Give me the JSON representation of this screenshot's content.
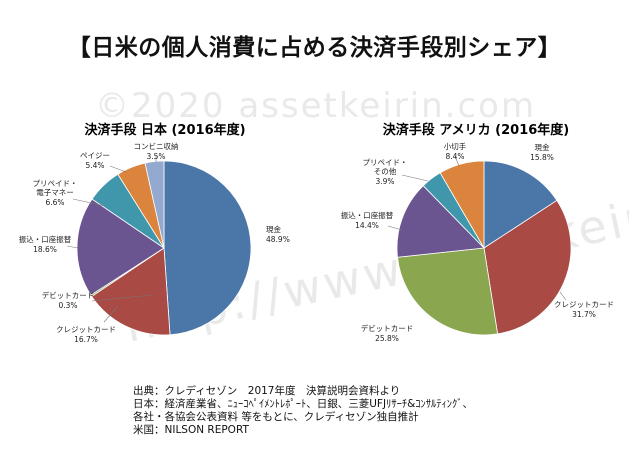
{
  "title": "【日米の個人消費に占める決済手段別シェア】",
  "watermark": {
    "top": "©2020 assetkeirin.com",
    "bottom": "http://www.assetkeirin.com"
  },
  "chart_data": [
    {
      "type": "pie",
      "title": "決済手段 日本 (2016年度)",
      "unit": "%",
      "slices": [
        {
          "label": "現金",
          "value": 48.9,
          "color": "#4A77A8"
        },
        {
          "label": "クレジットカード",
          "value": 16.7,
          "color": "#A94A45"
        },
        {
          "label": "デビットカード",
          "value": 0.3,
          "color": "#8AA64E"
        },
        {
          "label": "振込・口座振替",
          "value": 18.6,
          "color": "#6B5591"
        },
        {
          "label": "プリペイド・電子マネー",
          "value": 6.6,
          "color": "#4096AB"
        },
        {
          "label": "ペイジー",
          "value": 5.4,
          "color": "#DB843D"
        },
        {
          "label": "コンビニ収納",
          "value": 3.5,
          "color": "#93A9CF"
        }
      ]
    },
    {
      "type": "pie",
      "title": "決済手段 アメリカ (2016年度)",
      "unit": "%",
      "slices": [
        {
          "label": "現金",
          "value": 15.8,
          "color": "#4A77A8"
        },
        {
          "label": "クレジットカード",
          "value": 31.7,
          "color": "#A94A45"
        },
        {
          "label": "デビットカード",
          "value": 25.8,
          "color": "#8AA64E"
        },
        {
          "label": "振込・口座振替",
          "value": 14.4,
          "color": "#6B5591"
        },
        {
          "label": "プリペイド・その他",
          "value": 3.9,
          "color": "#4096AB"
        },
        {
          "label": "小切手",
          "value": 8.4,
          "color": "#DB843D"
        }
      ]
    }
  ],
  "source_lines": [
    "出典：クレディセゾン　2017年度　決算説明会資料より",
    "日本：経済産業省、ﾆｭｰｺﾍﾟｲﾒﾝﾄﾚﾎﾟｰﾄ、日銀、三菱UFJﾘｻｰﾁ&ｺﾝｻﾙﾃｨﾝｸﾞ、",
    "各社・各協会公表資料 等をもとに、クレディセゾン独自推計",
    "米国：NILSON REPORT"
  ]
}
